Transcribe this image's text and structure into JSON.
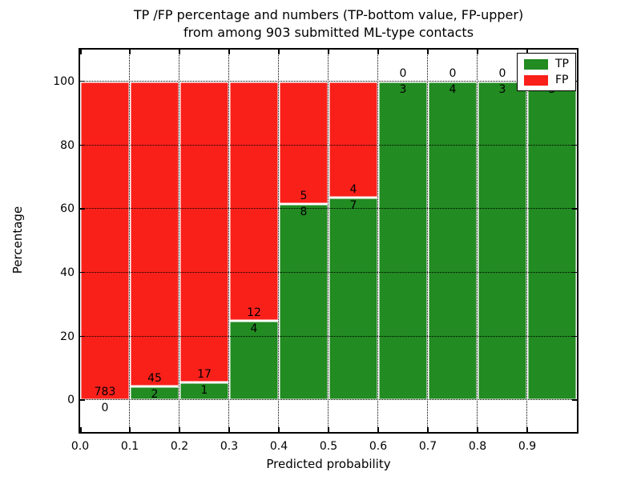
{
  "chart_data": {
    "type": "bar",
    "stacked": true,
    "title_line1": "TP /FP percentage and numbers (TP-bottom value, FP-upper)",
    "title_line2": "from among 903 submitted ML-type contacts",
    "xlabel": "Predicted probability",
    "ylabel": "Percentage",
    "xlim": [
      0.0,
      1.0
    ],
    "ylim": [
      -10,
      110
    ],
    "grid": "dotted",
    "x_tick_values": [
      0.0,
      0.1,
      0.2,
      0.3,
      0.4,
      0.5,
      0.6,
      0.7,
      0.8,
      0.9
    ],
    "x_tick_labels": [
      "0.0",
      "0.1",
      "0.2",
      "0.3",
      "0.4",
      "0.5",
      "0.6",
      "0.7",
      "0.8",
      "0.9"
    ],
    "y_tick_values": [
      0,
      20,
      40,
      60,
      80,
      100
    ],
    "y_tick_labels": [
      "0",
      "20",
      "40",
      "60",
      "80",
      "100"
    ],
    "total_contacts": 903,
    "bins": [
      {
        "range": [
          0.0,
          0.1
        ],
        "tp": 0,
        "fp": 783
      },
      {
        "range": [
          0.1,
          0.2
        ],
        "tp": 2,
        "fp": 45
      },
      {
        "range": [
          0.2,
          0.3
        ],
        "tp": 1,
        "fp": 17
      },
      {
        "range": [
          0.3,
          0.4
        ],
        "tp": 4,
        "fp": 12
      },
      {
        "range": [
          0.4,
          0.5
        ],
        "tp": 8,
        "fp": 5
      },
      {
        "range": [
          0.5,
          0.6
        ],
        "tp": 7,
        "fp": 4
      },
      {
        "range": [
          0.6,
          0.7
        ],
        "tp": 3,
        "fp": 0
      },
      {
        "range": [
          0.7,
          0.8
        ],
        "tp": 4,
        "fp": 0
      },
      {
        "range": [
          0.8,
          0.9
        ],
        "tp": 3,
        "fp": 0
      },
      {
        "range": [
          0.9,
          1.0
        ],
        "tp": 5,
        "fp": 0
      }
    ],
    "legend": {
      "position": "upper right",
      "items": [
        {
          "label": "TP",
          "color": "#228b22"
        },
        {
          "label": "FP",
          "color": "#fa201a"
        }
      ]
    },
    "colors": {
      "tp": "#228b22",
      "fp": "#fa201a",
      "bar_edge": "#ffffff",
      "grid": "#000000",
      "text": "#000000",
      "background": "#ffffff"
    }
  }
}
